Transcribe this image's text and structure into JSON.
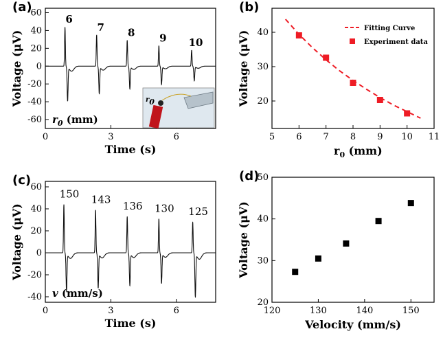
{
  "chart_data": [
    {
      "panel": "(a)",
      "type": "line",
      "xlabel": "Time (s)",
      "ylabel": "Voltage (μV)",
      "xlim": [
        0,
        7.8
      ],
      "ylim": [
        -70,
        65
      ],
      "xticks": [
        0,
        3,
        6
      ],
      "yticks": [
        -60,
        -40,
        -20,
        0,
        20,
        40,
        60
      ],
      "annotation_var": "r",
      "annotation_sub": "0",
      "annotation_unit": " (mm)",
      "pulse_labels": [
        "6",
        "7",
        "8",
        "9",
        "10"
      ],
      "pulses": [
        {
          "t": 0.9,
          "peak": 44,
          "trough": -38
        },
        {
          "t": 2.35,
          "peak": 35,
          "trough": -30
        },
        {
          "t": 3.75,
          "peak": 29,
          "trough": -25
        },
        {
          "t": 5.2,
          "peak": 23,
          "trough": -20
        },
        {
          "t": 6.7,
          "peak": 18,
          "trough": -16
        }
      ],
      "inset": {
        "label_var": "r",
        "label_sub": "0",
        "bg": "#dfe8ef",
        "probe_color": "#c0141b"
      }
    },
    {
      "panel": "(b)",
      "type": "scatter",
      "xlabel": "r",
      "xlabel_sub": "0",
      "xlabel_unit": " (mm)",
      "ylabel": "Voltage (μV)",
      "xlim": [
        5,
        11
      ],
      "ylim": [
        12,
        47
      ],
      "xticks": [
        5,
        6,
        7,
        8,
        9,
        10,
        11
      ],
      "yticks": [
        20,
        30,
        40
      ],
      "series": [
        {
          "name": "Experiment data",
          "x": [
            6,
            7,
            8,
            9,
            10
          ],
          "y": [
            39.1,
            32.6,
            25.3,
            20.3,
            16.4
          ],
          "color": "#ee1c25"
        },
        {
          "name": "Fitting Curve",
          "x": [
            5.5,
            6,
            6.5,
            7,
            7.5,
            8,
            8.5,
            9,
            9.5,
            10,
            10.5
          ],
          "y": [
            43.8,
            39.4,
            35.5,
            32.0,
            28.8,
            26.0,
            23.4,
            21.0,
            18.8,
            16.9,
            15.0
          ],
          "color": "#ee1c25",
          "style": "dashed"
        }
      ],
      "legend_position": "top-right"
    },
    {
      "panel": "(c)",
      "type": "line",
      "xlabel": "Time (s)",
      "ylabel": "Voltage (μV)",
      "xlim": [
        0,
        7.8
      ],
      "ylim": [
        -45,
        65
      ],
      "xticks": [
        0,
        3,
        6
      ],
      "yticks": [
        -40,
        -20,
        0,
        20,
        40,
        60
      ],
      "annotation_var": "v",
      "annotation_unit": " (mm/s)",
      "pulse_labels": [
        "150",
        "143",
        "136",
        "130",
        "125"
      ],
      "pulses": [
        {
          "t": 0.85,
          "peak": 44,
          "trough": -34
        },
        {
          "t": 2.3,
          "peak": 39,
          "trough": -31
        },
        {
          "t": 3.75,
          "peak": 33,
          "trough": -29
        },
        {
          "t": 5.2,
          "peak": 31,
          "trough": -27
        },
        {
          "t": 6.75,
          "peak": 28,
          "trough": -39
        }
      ]
    },
    {
      "panel": "(d)",
      "type": "scatter",
      "xlabel": "Velocity (mm/s)",
      "ylabel": "Voltage (μV)",
      "xlim": [
        120,
        155
      ],
      "ylim": [
        20,
        50
      ],
      "xticks": [
        120,
        130,
        140,
        150
      ],
      "yticks": [
        20,
        30,
        40,
        50
      ],
      "series": [
        {
          "x": [
            125,
            130,
            136,
            143,
            150
          ],
          "y": [
            27.3,
            30.5,
            34.1,
            39.5,
            43.8
          ],
          "color": "#000000"
        }
      ]
    }
  ]
}
